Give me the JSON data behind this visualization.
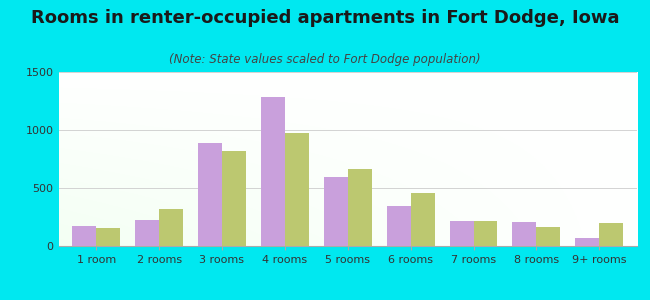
{
  "title": "Rooms in renter-occupied apartments in Fort Dodge, Iowa",
  "subtitle": "(Note: State values scaled to Fort Dodge population)",
  "categories": [
    "1 room",
    "2 rooms",
    "3 rooms",
    "4 rooms",
    "5 rooms",
    "6 rooms",
    "7 rooms",
    "8 rooms",
    "9+ rooms"
  ],
  "fort_dodge": [
    170,
    225,
    890,
    1285,
    595,
    345,
    215,
    210,
    65
  ],
  "iowa": [
    155,
    320,
    820,
    975,
    665,
    455,
    215,
    165,
    195
  ],
  "fort_dodge_color": "#c9a0dc",
  "iowa_color": "#bcc870",
  "background_outer": "#00e8f0",
  "ylim": [
    0,
    1500
  ],
  "yticks": [
    0,
    500,
    1000,
    1500
  ],
  "title_fontsize": 13,
  "subtitle_fontsize": 8.5,
  "axis_label_fontsize": 8,
  "legend_fontsize": 9,
  "bar_width": 0.38
}
